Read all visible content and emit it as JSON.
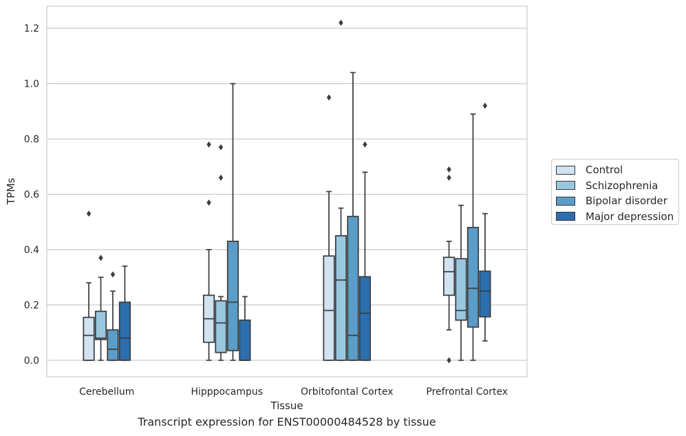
{
  "chart_data": {
    "type": "box",
    "title": "",
    "caption": "Transcript expression for ENST00000484528 by tissue",
    "xlabel": "Tissue",
    "ylabel": "TPMs",
    "ylim": [
      -0.06,
      1.28
    ],
    "yticks": [
      "0.0",
      "0.2",
      "0.4",
      "0.6",
      "0.8",
      "1.0",
      "1.2"
    ],
    "grid": true,
    "legend_position": "right",
    "categories": [
      "Cerebellum",
      "Hipppocampus",
      "Orbitofontal Cortex",
      "Prefrontal Cortex"
    ],
    "series": [
      {
        "name": "Control",
        "color": "#d1e2f2",
        "boxes": [
          {
            "whislo": 0.0,
            "q1": 0.0,
            "med": 0.09,
            "q3": 0.155,
            "whishi": 0.28,
            "fliers": [
              0.53
            ]
          },
          {
            "whislo": 0.0,
            "q1": 0.065,
            "med": 0.15,
            "q3": 0.235,
            "whishi": 0.4,
            "fliers": [
              0.57,
              0.78
            ]
          },
          {
            "whislo": 0.0,
            "q1": 0.0,
            "med": 0.18,
            "q3": 0.377,
            "whishi": 0.61,
            "fliers": [
              0.95
            ]
          },
          {
            "whislo": 0.11,
            "q1": 0.235,
            "med": 0.32,
            "q3": 0.372,
            "whishi": 0.43,
            "fliers": [
              0.0,
              0.66,
              0.69
            ]
          }
        ]
      },
      {
        "name": "Schizophrenia",
        "color": "#9ac7e0",
        "boxes": [
          {
            "whislo": 0.0,
            "q1": 0.075,
            "med": 0.08,
            "q3": 0.177,
            "whishi": 0.3,
            "fliers": [
              0.37
            ]
          },
          {
            "whislo": 0.0,
            "q1": 0.028,
            "med": 0.135,
            "q3": 0.215,
            "whishi": 0.23,
            "fliers": [
              0.66,
              0.77
            ]
          },
          {
            "whislo": 0.0,
            "q1": 0.0,
            "med": 0.29,
            "q3": 0.45,
            "whishi": 0.55,
            "fliers": [
              1.22
            ]
          },
          {
            "whislo": 0.0,
            "q1": 0.145,
            "med": 0.18,
            "q3": 0.367,
            "whishi": 0.56,
            "fliers": []
          }
        ]
      },
      {
        "name": "Bipolar disorder",
        "color": "#5a9dc8",
        "boxes": [
          {
            "whislo": 0.0,
            "q1": 0.0,
            "med": 0.04,
            "q3": 0.11,
            "whishi": 0.25,
            "fliers": [
              0.31
            ]
          },
          {
            "whislo": 0.0,
            "q1": 0.035,
            "med": 0.21,
            "q3": 0.43,
            "whishi": 1.0,
            "fliers": []
          },
          {
            "whislo": 0.0,
            "q1": 0.0,
            "med": 0.09,
            "q3": 0.52,
            "whishi": 1.04,
            "fliers": []
          },
          {
            "whislo": 0.0,
            "q1": 0.12,
            "med": 0.26,
            "q3": 0.48,
            "whishi": 0.89,
            "fliers": []
          }
        ]
      },
      {
        "name": "Major depression",
        "color": "#2c6eae",
        "boxes": [
          {
            "whislo": 0.0,
            "q1": 0.0,
            "med": 0.08,
            "q3": 0.21,
            "whishi": 0.34,
            "fliers": []
          },
          {
            "whislo": 0.0,
            "q1": 0.0,
            "med": 0.0,
            "q3": 0.145,
            "whishi": 0.23,
            "fliers": []
          },
          {
            "whislo": 0.0,
            "q1": 0.0,
            "med": 0.17,
            "q3": 0.302,
            "whishi": 0.68,
            "fliers": [
              0.78
            ]
          },
          {
            "whislo": 0.07,
            "q1": 0.157,
            "med": 0.25,
            "q3": 0.322,
            "whishi": 0.53,
            "fliers": [
              0.92
            ]
          }
        ]
      }
    ]
  }
}
